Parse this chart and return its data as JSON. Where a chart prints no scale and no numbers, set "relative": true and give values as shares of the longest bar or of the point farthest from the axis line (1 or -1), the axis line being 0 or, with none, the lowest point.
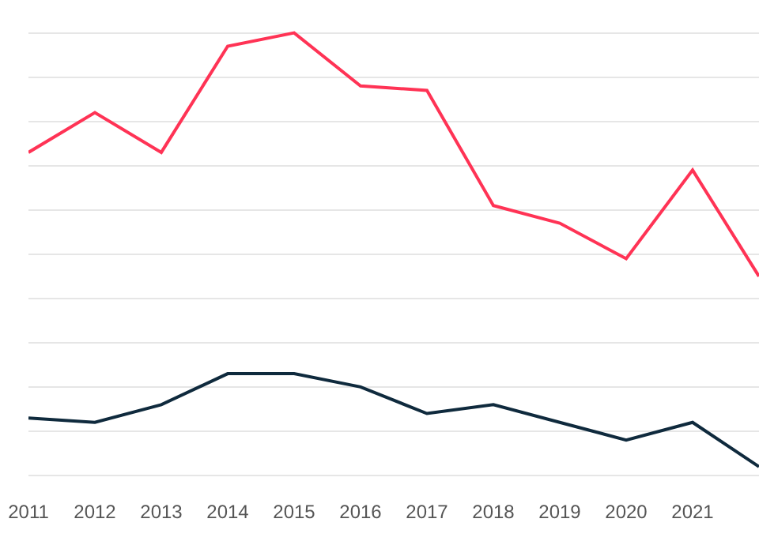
{
  "chart_data": {
    "type": "line",
    "relative": true,
    "x": [
      2011,
      2012,
      2013,
      2014,
      2015,
      2016,
      2017,
      2018,
      2019,
      2020,
      2021,
      2022
    ],
    "xlim": [
      2011,
      2022
    ],
    "xticks": [
      2011,
      2012,
      2013,
      2014,
      2015,
      2016,
      2017,
      2018,
      2019,
      2020,
      2021
    ],
    "series": [
      {
        "color": "#ff3355",
        "values": [
          0.73,
          0.82,
          0.73,
          0.97,
          1,
          0.88,
          0.87,
          0.61,
          0.57,
          0.49,
          0.69,
          0.45
        ]
      },
      {
        "color": "#0f2a3d",
        "values": [
          0.13,
          0.12,
          0.16,
          0.23,
          0.23,
          0.2,
          0.14,
          0.16,
          0.12,
          0.08,
          0.12,
          0.02
        ]
      }
    ],
    "grid": "y",
    "marker": "none",
    "line_style": "solid"
  }
}
